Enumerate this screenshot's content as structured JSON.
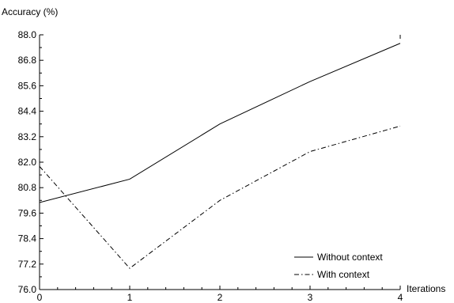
{
  "chart_data": {
    "type": "line",
    "xlabel": "Iterations",
    "ylabel": "Accuracy (%)",
    "x": [
      0,
      1,
      2,
      3,
      4
    ],
    "xlim": [
      0,
      4
    ],
    "ylim": [
      76.0,
      88.0
    ],
    "x_ticks": [
      "0",
      "1",
      "2",
      "3",
      "4"
    ],
    "y_ticks": [
      "76.0",
      "77.2",
      "78.4",
      "79.6",
      "80.8",
      "82.0",
      "83.2",
      "84.4",
      "85.6",
      "86.8",
      "88.0"
    ],
    "grid": false,
    "legend_position": "bottom-right",
    "series": [
      {
        "name": "Without context",
        "style": "solid",
        "values": [
          80.1,
          81.2,
          83.8,
          85.8,
          87.6
        ]
      },
      {
        "name": "With context",
        "style": "dash-dot",
        "values": [
          81.8,
          77.0,
          80.2,
          82.5,
          83.7
        ]
      }
    ],
    "colors": {
      "line": "#000000",
      "axis": "#000000",
      "background": "#ffffff"
    }
  }
}
